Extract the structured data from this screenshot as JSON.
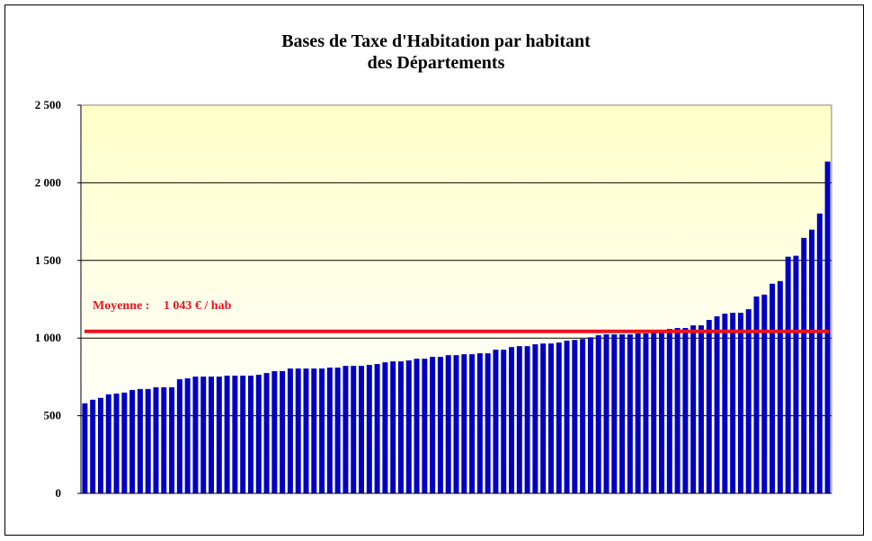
{
  "chart_data": {
    "type": "bar",
    "title_line1": "Bases de Taxe d'Habitation par habitant",
    "title_line2": "des Départements",
    "xlabel": "",
    "ylabel": "",
    "ylim": [
      0,
      2500
    ],
    "yticks": [
      0,
      500,
      1000,
      1500,
      2000,
      2500
    ],
    "ytick_labels": [
      "0",
      "500",
      "1 000",
      "1 500",
      "2 000",
      "2 500"
    ],
    "grid": true,
    "bar_color": "#0000c0",
    "average_line": {
      "value": 1043,
      "color": "#e8141c",
      "label_prefix": "Moyenne :",
      "label_value": "1 043 € / hab"
    },
    "values": [
      580,
      603,
      615,
      638,
      643,
      649,
      666,
      672,
      672,
      683,
      683,
      683,
      735,
      741,
      752,
      752,
      752,
      752,
      758,
      758,
      758,
      758,
      764,
      775,
      787,
      787,
      804,
      804,
      804,
      804,
      804,
      810,
      810,
      821,
      821,
      821,
      827,
      833,
      844,
      850,
      850,
      856,
      867,
      867,
      879,
      879,
      890,
      890,
      896,
      896,
      902,
      902,
      925,
      925,
      942,
      948,
      948,
      960,
      965,
      965,
      971,
      983,
      988,
      994,
      1005,
      1018,
      1024,
      1024,
      1024,
      1024,
      1030,
      1030,
      1035,
      1035,
      1059,
      1065,
      1065,
      1082,
      1082,
      1117,
      1140,
      1157,
      1163,
      1163,
      1186,
      1268,
      1280,
      1350,
      1367,
      1524,
      1530,
      1645,
      1698,
      1802,
      2137
    ]
  }
}
